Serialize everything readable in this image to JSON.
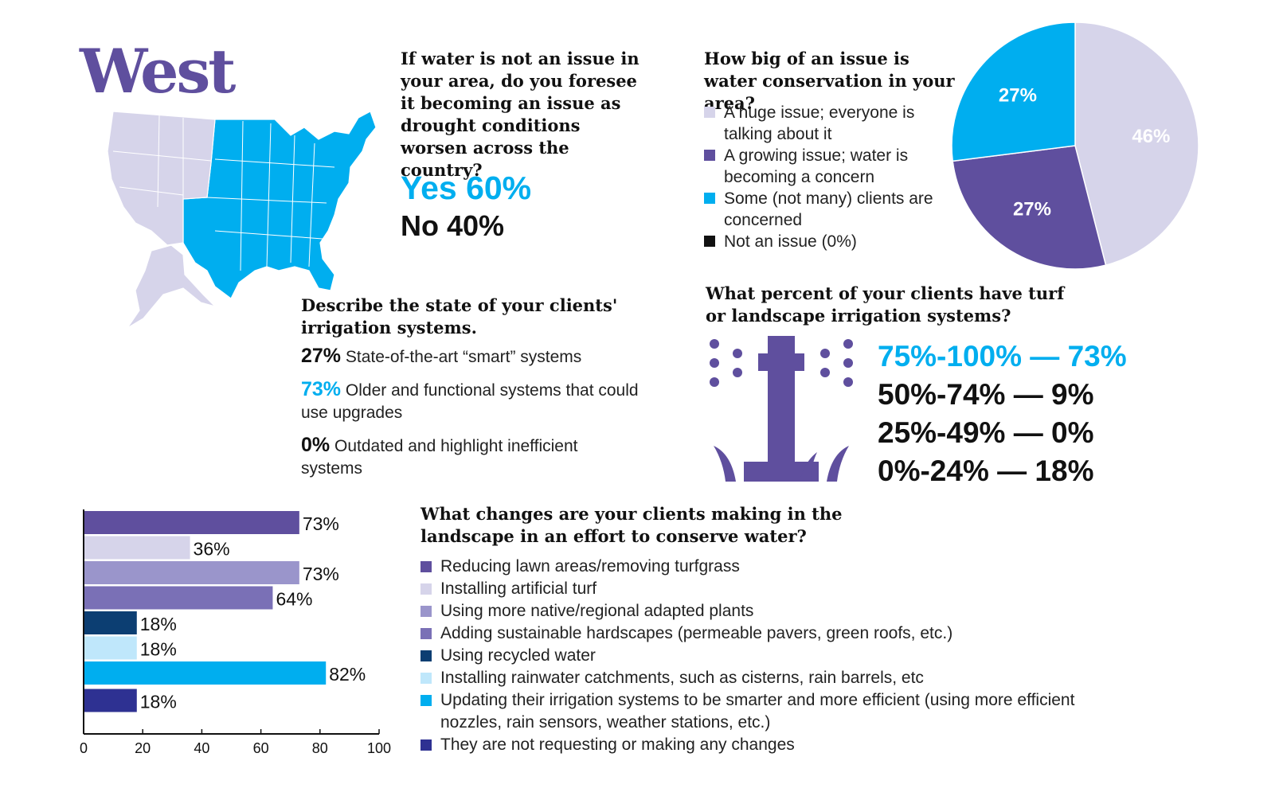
{
  "region_title": "West",
  "colors": {
    "purple_dark": "#5f4f9e",
    "lavender": "#d6d4ea",
    "cyan": "#00aeef",
    "black": "#111111"
  },
  "q1": {
    "question": "If water is not an issue in your area, do you foresee it becoming an issue as drought conditions worsen across the country?",
    "yes": "Yes 60%",
    "no": "No 40%"
  },
  "q2": {
    "question": "How big of an issue is water conservation in your area?",
    "legend": [
      {
        "label": "A huge issue; everyone is talking about it",
        "color": "#d6d4ea"
      },
      {
        "label": "A growing issue; water is becoming a concern",
        "color": "#5f4f9e"
      },
      {
        "label": "Some (not many) clients are concerned",
        "color": "#00aeef"
      },
      {
        "label": "Not an issue (0%)",
        "color": "#111111"
      }
    ]
  },
  "q3": {
    "question": "Describe the state of your clients' irrigation systems.",
    "items": [
      {
        "pct": "27%",
        "text": "State-of-the-art “smart” systems",
        "color": "#111111"
      },
      {
        "pct": "73%",
        "text": "Older and functional systems that could use upgrades",
        "color": "#00aeef"
      },
      {
        "pct": "0%",
        "text": "Outdated and highlight inefficient systems",
        "color": "#111111"
      }
    ]
  },
  "q4": {
    "question": "What percent of your clients have turf or landscape irrigation systems?",
    "rows": [
      "75%-100% — 73%",
      "50%-74% — 9%",
      "25%-49% — 0%",
      "0%-24% — 18%"
    ]
  },
  "q5": {
    "question": "What changes are your clients making in the landscape in an effort to conserve water?",
    "legend": [
      "Reducing lawn areas/removing turfgrass",
      "Installing artificial turf",
      "Using more native/regional adapted plants",
      "Adding sustainable hardscapes (permeable pavers, green roofs, etc.)",
      "Using recycled water",
      "Installing rainwater catchments, such as cisterns, rain barrels, etc",
      "Updating their irrigation systems to be smarter and more efficient (using more efficient nozzles, rain sensors, weather stations, etc.)",
      "They are not requesting or making any changes"
    ]
  },
  "chart_data": [
    {
      "type": "pie",
      "title": "How big of an issue is water conservation in your area?",
      "categories": [
        "A huge issue; everyone is talking about it",
        "A growing issue; water is becoming a concern",
        "Some (not many) clients are concerned",
        "Not an issue (0%)"
      ],
      "values": [
        46,
        27,
        27,
        0
      ],
      "labels": [
        "46%",
        "27%",
        "27%",
        ""
      ],
      "colors": [
        "#d6d4ea",
        "#5f4f9e",
        "#00aeef",
        "#111111"
      ]
    },
    {
      "type": "bar",
      "orientation": "horizontal",
      "title": "What changes are your clients making in the landscape in an effort to conserve water?",
      "categories": [
        "Reducing lawn areas/removing turfgrass",
        "Installing artificial turf",
        "Using more native/regional adapted plants",
        "Adding sustainable hardscapes (permeable pavers, green roofs, etc.)",
        "Using recycled water",
        "Installing rainwater catchments, such as cisterns, rain barrels, etc",
        "Updating their irrigation systems to be smarter and more efficient (using more efficient nozzles, rain sensors, weather stations, etc.)",
        "They are not requesting or making any changes"
      ],
      "values": [
        73,
        36,
        73,
        64,
        18,
        18,
        82,
        18
      ],
      "labels": [
        "73%",
        "36%",
        "73%",
        "64%",
        "18%",
        "18%",
        "82%",
        "18%"
      ],
      "colors": [
        "#5f4f9e",
        "#d6d4ea",
        "#9a95cb",
        "#7a70b6",
        "#0c3e72",
        "#bfe7fb",
        "#00aeef",
        "#2e3192"
      ],
      "xlim": [
        0,
        100
      ],
      "xticks": [
        "0",
        "20",
        "40",
        "60",
        "80",
        "100"
      ],
      "grid": false
    }
  ]
}
